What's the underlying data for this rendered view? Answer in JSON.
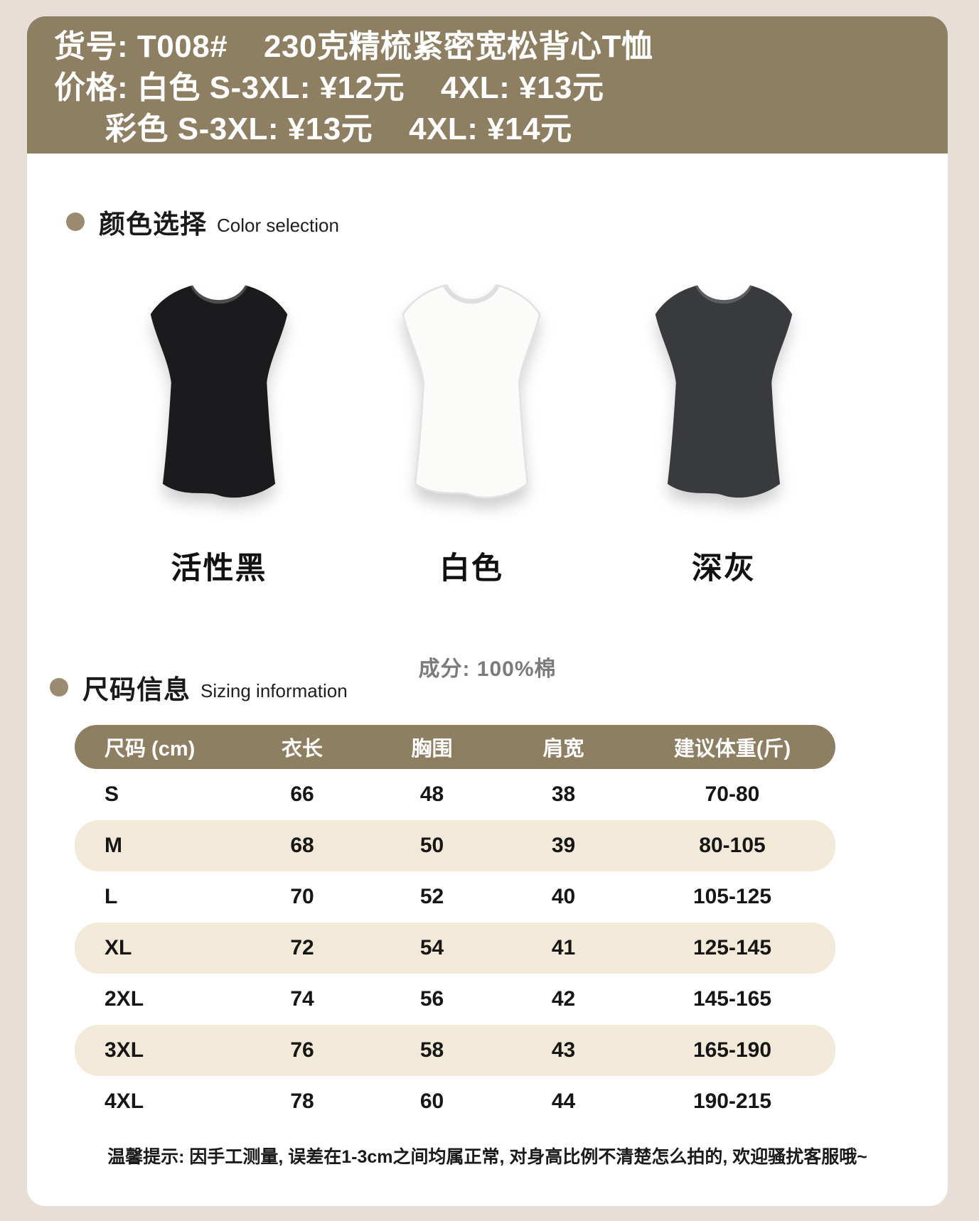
{
  "page": {
    "background_color": "#e6ded7",
    "card_color": "#ffffff",
    "accent_color": "#8e7f63",
    "stripe_color": "#f2e9d8",
    "bullet_color": "#9d8b71"
  },
  "header": {
    "line1": "货号: T008#    230克精梳紧密宽松背心T恤",
    "line2": "价格: 白色 S-3XL: ¥12元    4XL: ¥13元",
    "line3": "彩色 S-3XL: ¥13元    4XL: ¥14元"
  },
  "color_section": {
    "title_zh": "颜色选择",
    "title_en": "Color selection",
    "colors": [
      {
        "name": "活性黑",
        "fill": "#1b1b1d",
        "collar": "rgba(255,255,255,0.22)",
        "stroke": "none"
      },
      {
        "name": "白色",
        "fill": "#fbfbfa",
        "collar": "#dfdfdf",
        "stroke": "#e2e2e2"
      },
      {
        "name": "深灰",
        "fill": "#393a3e",
        "collar": "rgba(255,255,255,0.18)",
        "stroke": "none"
      }
    ]
  },
  "composition": "成分: 100%棉",
  "sizing_section": {
    "title_zh": "尺码信息",
    "title_en": "Sizing information",
    "table": {
      "headers": [
        "尺码 (cm)",
        "衣长",
        "胸围",
        "肩宽",
        "建议体重(斤)"
      ],
      "rows": [
        [
          "S",
          "66",
          "48",
          "38",
          "70-80"
        ],
        [
          "M",
          "68",
          "50",
          "39",
          "80-105"
        ],
        [
          "L",
          "70",
          "52",
          "40",
          "105-125"
        ],
        [
          "XL",
          "72",
          "54",
          "41",
          "125-145"
        ],
        [
          "2XL",
          "74",
          "56",
          "42",
          "145-165"
        ],
        [
          "3XL",
          "76",
          "58",
          "43",
          "165-190"
        ],
        [
          "4XL",
          "78",
          "60",
          "44",
          "190-215"
        ]
      ]
    }
  },
  "footer_note": "温馨提示: 因手工测量, 误差在1-3cm之间均属正常, 对身高比例不清楚怎么拍的, 欢迎骚扰客服哦~"
}
